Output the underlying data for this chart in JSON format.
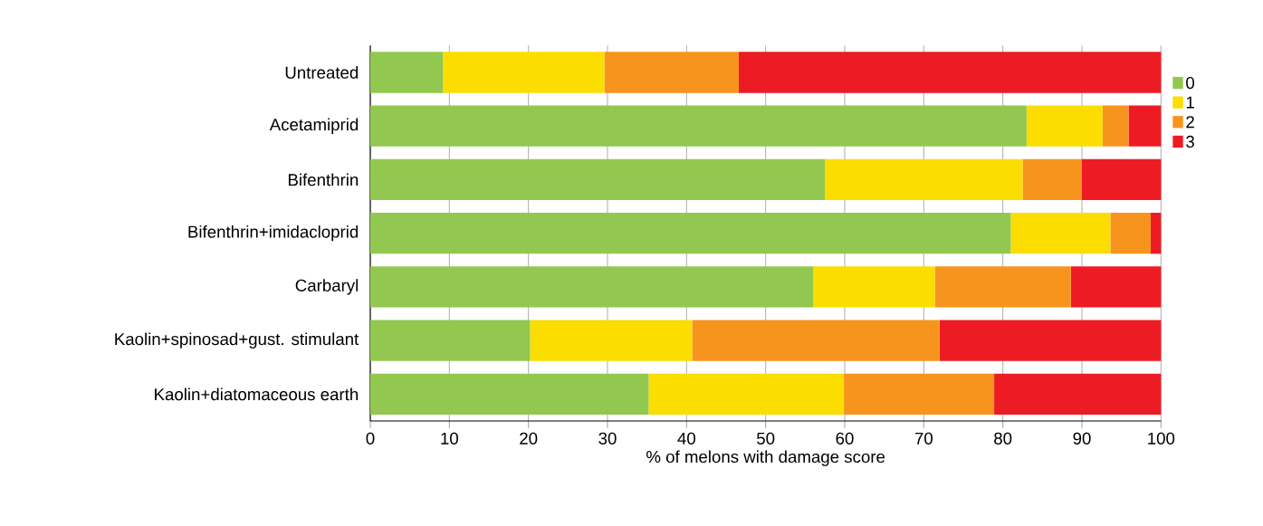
{
  "chart_data": {
    "type": "bar",
    "orientation": "horizontal",
    "stacked": true,
    "categories": [
      "Untreated",
      "Acetamiprid",
      "Bifenthrin",
      "Bifenthrin+imidacloprid",
      "Carbaryl",
      "Kaolin+spinosad+gust. stimulant",
      "Kaolin+diatomaceous earth"
    ],
    "series": [
      {
        "name": "0",
        "color": "#92c84f",
        "values": [
          9.2,
          83,
          57.5,
          81,
          56,
          20.2,
          35.2
        ]
      },
      {
        "name": "1",
        "color": "#fcdd00",
        "values": [
          20.4,
          9.6,
          25,
          12.6,
          15.4,
          20.5,
          24.7
        ]
      },
      {
        "name": "2",
        "color": "#f7941d",
        "values": [
          17.0,
          3.3,
          7.5,
          5.1,
          17.2,
          31.3,
          19.0
        ]
      },
      {
        "name": "3",
        "color": "#ed1c24",
        "values": [
          53.4,
          4.1,
          10,
          1.3,
          11.4,
          28.0,
          21.1
        ]
      }
    ],
    "xlabel": "% of melons with damage score",
    "xlim": [
      0,
      100
    ],
    "xticks": [
      0,
      10,
      20,
      30,
      40,
      50,
      60,
      70,
      80,
      90,
      100
    ],
    "grid": "x",
    "legend": "top right"
  }
}
